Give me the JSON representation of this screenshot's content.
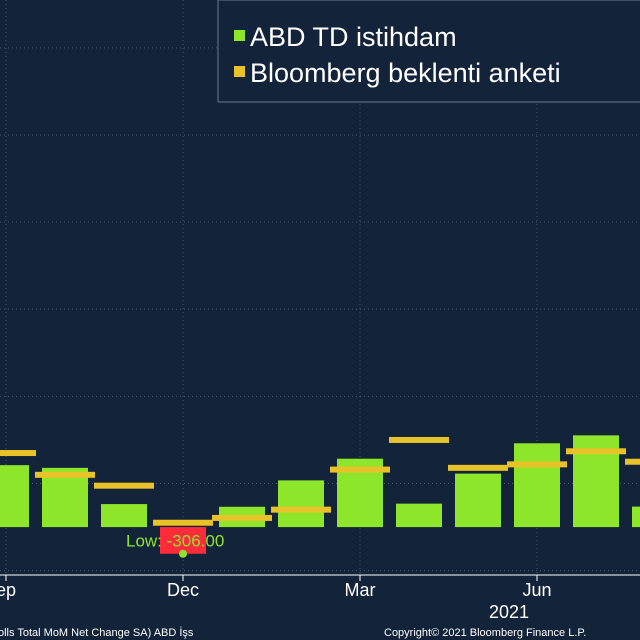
{
  "chart_data": {
    "type": "bar",
    "x": [
      "2020-09",
      "2020-10",
      "2020-11",
      "2020-12",
      "2021-01",
      "2021-02",
      "2021-03",
      "2021-04",
      "2021-05",
      "2021-06",
      "2021-07",
      "2021-08"
    ],
    "x_tick_labels": [
      "ep",
      "Dec",
      "Mar",
      "Jun"
    ],
    "year_label": "2021",
    "series": [
      {
        "name": "ABD TD istihdam",
        "type": "bar",
        "color": "#8ee62a",
        "values": [
          711,
          680,
          264,
          -306,
          233,
          536,
          785,
          269,
          614,
          962,
          1053,
          235
        ]
      },
      {
        "name": "Bloomberg beklenti anketi",
        "type": "marker",
        "color": "#e8c229",
        "values": [
          850,
          600,
          475,
          50,
          105,
          200,
          660,
          1000,
          680,
          720,
          870,
          750
        ]
      }
    ],
    "ylim": [
      -550,
      6050
    ],
    "gridlines": [
      -500,
      500,
      1500,
      2500,
      3500,
      4500,
      5500
    ],
    "annotation": {
      "text": "Low: -306.00",
      "value": -306
    },
    "legend_position": "top-right",
    "grid": true
  },
  "footer": {
    "source_text": "olls Total MoM Net Change SA) ABD İşs",
    "copyright": "Copyright© 2021 Bloomberg Finance L.P."
  },
  "colors": {
    "background": "#13233a",
    "grid": "#4a5870",
    "axis": "#ffffff",
    "low_bar": "#ff2a3a",
    "low_text": "#8ee62a",
    "legend_border": "#6e7a8c"
  }
}
